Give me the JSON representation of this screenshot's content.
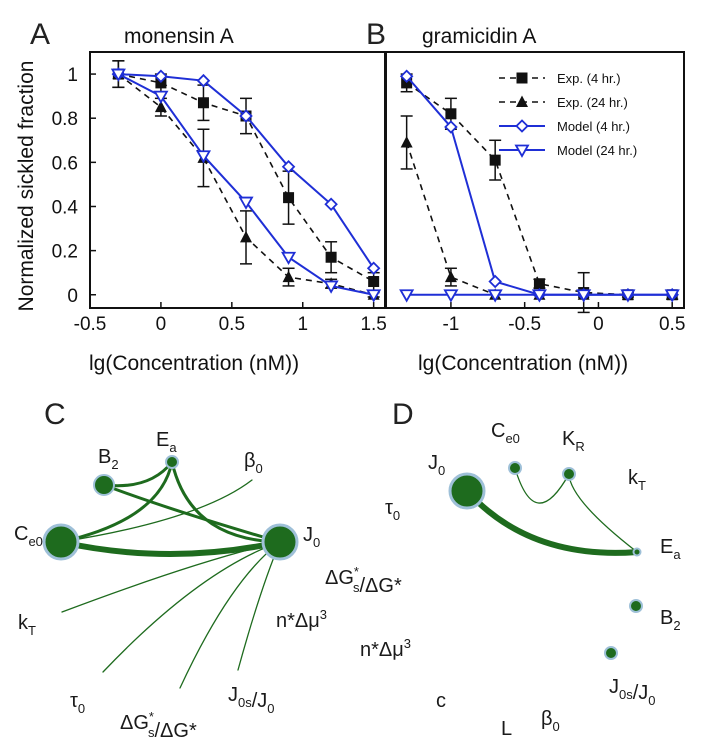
{
  "chart_data": [
    {
      "panel": "A",
      "type": "line",
      "title": "monensin A",
      "xlabel": "lg(Concentration (nM))",
      "ylabel": "Normalized sickled fraction",
      "xlim": [
        -0.5,
        1.58
      ],
      "ylim": [
        -0.06,
        1.1
      ],
      "xticks": [
        -0.5,
        0,
        0.5,
        1,
        1.5
      ],
      "xtick_labels": [
        "-0.5",
        "0",
        "0.5",
        "1",
        "1.5"
      ],
      "yticks": [
        0,
        0.2,
        0.4,
        0.6,
        0.8,
        1
      ],
      "ytick_labels": [
        "0",
        "0.2",
        "0.4",
        "0.6",
        "0.8",
        "1"
      ],
      "series": [
        {
          "name": "Exp. (4 hr.)",
          "style": "dashed",
          "marker": "square",
          "x": [
            -0.3,
            0,
            0.3,
            0.6,
            0.9,
            1.2,
            1.5
          ],
          "y": [
            1.0,
            0.96,
            0.87,
            0.81,
            0.44,
            0.17,
            0.06
          ],
          "err": [
            0.06,
            0.04,
            0.08,
            0.08,
            0.12,
            0.07,
            0.04
          ]
        },
        {
          "name": "Exp. (24 hr.)",
          "style": "dashed",
          "marker": "triangle",
          "x": [
            -0.3,
            0,
            0.3,
            0.6,
            0.9,
            1.2,
            1.5
          ],
          "y": [
            1.0,
            0.85,
            0.62,
            0.26,
            0.08,
            0.05,
            0.0
          ],
          "err": [
            0.06,
            0.04,
            0.13,
            0.12,
            0.04,
            0.02,
            0.01
          ]
        },
        {
          "name": "Model (4 hr.)",
          "style": "solid",
          "marker": "diamond-open",
          "x": [
            -0.3,
            0,
            0.3,
            0.6,
            0.9,
            1.2,
            1.5
          ],
          "y": [
            1.0,
            0.99,
            0.97,
            0.81,
            0.58,
            0.41,
            0.12
          ]
        },
        {
          "name": "Model (24 hr.)",
          "style": "solid",
          "marker": "triangle-down-open",
          "x": [
            -0.3,
            0,
            0.3,
            0.6,
            0.9,
            1.2,
            1.5
          ],
          "y": [
            1.0,
            0.9,
            0.63,
            0.42,
            0.17,
            0.04,
            0.0
          ]
        }
      ]
    },
    {
      "panel": "B",
      "type": "line",
      "title": "gramicidin A",
      "xlabel": "lg(Concentration (nM))",
      "ylabel": "",
      "xlim": [
        -1.44,
        0.58
      ],
      "ylim": [
        -0.06,
        1.1
      ],
      "xticks": [
        -1,
        -0.5,
        0,
        0.5
      ],
      "xtick_labels": [
        "-1",
        "-0.5",
        "0",
        "0.5"
      ],
      "legend": "top-right",
      "series": [
        {
          "name": "Exp. (4 hr.)",
          "style": "dashed",
          "marker": "square",
          "x": [
            -1.3,
            -1.0,
            -0.7,
            -0.4,
            -0.1,
            0.2,
            0.5
          ],
          "y": [
            0.96,
            0.82,
            0.61,
            0.05,
            0.01,
            0.0,
            0.0
          ],
          "err": [
            0.04,
            0.07,
            0.09,
            0.02,
            0.09,
            0.01,
            0.02
          ]
        },
        {
          "name": "Exp. (24 hr.)",
          "style": "dashed",
          "marker": "triangle",
          "x": [
            -1.3,
            -1.0,
            -0.7,
            -0.4,
            -0.1,
            0.2,
            0.5
          ],
          "y": [
            0.69,
            0.08,
            0.0,
            0.0,
            0.0,
            0.0,
            0.0
          ],
          "err": [
            0.12,
            0.04,
            0.0,
            0.0,
            0.0,
            0.0,
            0.0
          ]
        },
        {
          "name": "Model (4 hr.)",
          "style": "solid",
          "marker": "diamond-open",
          "x": [
            -1.3,
            -1.0,
            -0.7,
            -0.4,
            -0.1,
            0.2,
            0.5
          ],
          "y": [
            0.99,
            0.76,
            0.06,
            0.0,
            0.0,
            0.0,
            0.0
          ]
        },
        {
          "name": "Model (24 hr.)",
          "style": "solid",
          "marker": "triangle-down-open",
          "x": [
            -1.3,
            -1.0,
            -0.7,
            -0.4,
            -0.1,
            0.2,
            0.5
          ],
          "y": [
            0.0,
            0.0,
            0.0,
            0.0,
            0.0,
            0.0,
            0.0
          ]
        }
      ]
    },
    {
      "panel": "C",
      "type": "network",
      "nodes": [
        {
          "id": "Ce0",
          "label": "C",
          "sub": "e0",
          "size": "large"
        },
        {
          "id": "J0",
          "label": "J",
          "sub": "0",
          "size": "large"
        },
        {
          "id": "B2",
          "label": "B",
          "sub": "2",
          "size": "medium"
        },
        {
          "id": "Ea",
          "label": "E",
          "sub": "a",
          "size": "small"
        },
        {
          "id": "beta0",
          "label": "β",
          "sub": "0",
          "size": "none"
        },
        {
          "id": "kT",
          "label": "k",
          "sub": "T",
          "size": "none"
        },
        {
          "id": "tau0",
          "label": "τ",
          "sub": "0",
          "size": "none"
        },
        {
          "id": "dGs",
          "label": "ΔG",
          "sub": "s",
          "sup": "*",
          "suffix": "/ΔG*",
          "size": "none"
        },
        {
          "id": "J0s",
          "label": "J",
          "sub": "0s",
          "suffix": "/J",
          "sub2": "0",
          "size": "none"
        },
        {
          "id": "nmu",
          "label": "n*Δμ",
          "sup": "3",
          "size": "none"
        }
      ],
      "edges": [
        {
          "from": "Ce0",
          "to": "J0",
          "weight": "strong"
        },
        {
          "from": "B2",
          "to": "J0",
          "weight": "medium"
        },
        {
          "from": "Ea",
          "to": "J0",
          "weight": "medium"
        },
        {
          "from": "Ce0",
          "to": "Ea",
          "weight": "medium"
        },
        {
          "from": "Ce0",
          "to": "beta0",
          "weight": "weak"
        },
        {
          "from": "B2",
          "to": "Ea",
          "weight": "medium"
        },
        {
          "from": "kT",
          "to": "J0",
          "weight": "weak"
        },
        {
          "from": "tau0",
          "to": "J0",
          "weight": "weak"
        },
        {
          "from": "dGs",
          "to": "J0",
          "weight": "weak"
        },
        {
          "from": "J0s",
          "to": "J0",
          "weight": "weak"
        }
      ]
    },
    {
      "panel": "D",
      "type": "network",
      "nodes": [
        {
          "id": "J0",
          "label": "J",
          "sub": "0",
          "size": "large"
        },
        {
          "id": "Ce0",
          "label": "C",
          "sub": "e0",
          "size": "small"
        },
        {
          "id": "KR",
          "label": "K",
          "sub": "R",
          "size": "small"
        },
        {
          "id": "kT",
          "label": "k",
          "sub": "T",
          "size": "none"
        },
        {
          "id": "tau0",
          "label": "τ",
          "sub": "0",
          "size": "none"
        },
        {
          "id": "Ea",
          "label": "E",
          "sub": "a",
          "size": "tiny"
        },
        {
          "id": "dGs",
          "label": "ΔG",
          "sub": "s",
          "sup": "*",
          "suffix": "/ΔG*",
          "size": "none"
        },
        {
          "id": "B2",
          "label": "B",
          "sub": "2",
          "size": "small"
        },
        {
          "id": "nmu",
          "label": "n*Δμ",
          "sup": "3",
          "size": "none"
        },
        {
          "id": "J0s",
          "label": "J",
          "sub": "0s",
          "suffix": "/J",
          "sub2": "0",
          "size": "small"
        },
        {
          "id": "c",
          "label": "c",
          "size": "none"
        },
        {
          "id": "L",
          "label": "L",
          "size": "none"
        },
        {
          "id": "beta0",
          "label": "β",
          "sub": "0",
          "size": "none"
        }
      ],
      "edges": [
        {
          "from": "J0",
          "to": "Ea",
          "weight": "strong"
        },
        {
          "from": "Ce0",
          "to": "KR",
          "weight": "weak"
        },
        {
          "from": "KR",
          "to": "Ea",
          "weight": "weak"
        }
      ]
    }
  ],
  "colors": {
    "exp": "#111111",
    "model": "#1f2fd6",
    "network": "#1e6b1e",
    "node_ring": "#9ec0d8"
  }
}
